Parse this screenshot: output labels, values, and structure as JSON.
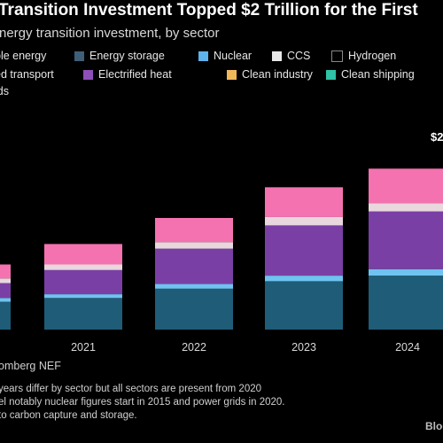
{
  "header": {
    "title": "Transition Investment Topped $2 Trillion for the First",
    "subtitle": "nergy transition investment, by sector"
  },
  "legend": [
    {
      "label": "ble energy",
      "color": "#2b6e8a"
    },
    {
      "label": "Energy storage",
      "color": "#3f5f78"
    },
    {
      "label": "Nuclear",
      "color": "#5fb3ec"
    },
    {
      "label": "CCS",
      "color": "#e8e8e8"
    },
    {
      "label": "Hydrogen",
      "color": "#000000"
    },
    {
      "label": "ed transport",
      "color": "#f56ab4"
    },
    {
      "label": "Electrified heat",
      "color": "#8e4fb8"
    },
    {
      "label": "Clean industry",
      "color": "#f0b85a"
    },
    {
      "label": "Clean shipping",
      "color": "#2fc2a6"
    },
    {
      "label": "ids",
      "color": "#ffffff"
    }
  ],
  "chart_data": {
    "type": "bar",
    "stacked": true,
    "categories": [
      "",
      "2021",
      "2022",
      "2023",
      "2024"
    ],
    "series": [
      {
        "color": "#1f5c78",
        "values": [
          30,
          34,
          44,
          52,
          58
        ]
      },
      {
        "color": "#6fc3f0",
        "values": [
          4,
          4,
          5,
          6,
          7
        ]
      },
      {
        "color": "#7a3fa5",
        "values": [
          16,
          26,
          38,
          54,
          62
        ]
      },
      {
        "color": "#e8d7dd",
        "values": [
          5,
          6,
          7,
          9,
          9
        ]
      },
      {
        "color": "#f472b0",
        "values": [
          15,
          22,
          26,
          32,
          37
        ]
      }
    ],
    "annotation": "$2",
    "ylim": [
      0,
      200
    ],
    "grid": false
  },
  "footer": {
    "source": "omberg NEF",
    "notes": [
      "years differ by sector but all sectors are present from 2020",
      "el notably nuclear figures start in 2015 and power grids in 2020.",
      "to carbon capture and storage."
    ],
    "brand": "Bloc"
  }
}
